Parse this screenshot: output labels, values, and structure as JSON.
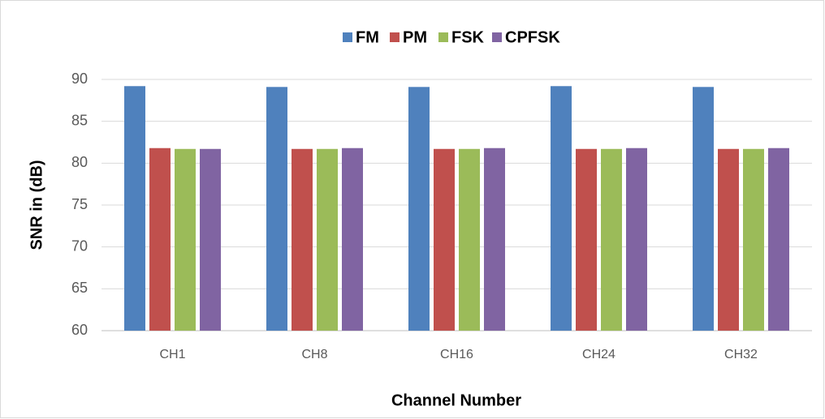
{
  "chart_data": {
    "type": "bar",
    "xlabel": "Channel Number",
    "ylabel": "SNR in (dB)",
    "categories": [
      "CH1",
      "CH8",
      "CH16",
      "CH24",
      "CH32"
    ],
    "series": [
      {
        "name": "FM",
        "color": "#4f81bd",
        "values": [
          89.2,
          89.1,
          89.1,
          89.2,
          89.1
        ]
      },
      {
        "name": "PM",
        "color": "#c0504d",
        "values": [
          81.8,
          81.7,
          81.7,
          81.7,
          81.7
        ]
      },
      {
        "name": "FSK",
        "color": "#9bbb59",
        "values": [
          81.7,
          81.7,
          81.7,
          81.7,
          81.7
        ]
      },
      {
        "name": "CPFSK",
        "color": "#8064a2",
        "values": [
          81.7,
          81.8,
          81.8,
          81.8,
          81.8
        ]
      }
    ],
    "ylim": [
      60,
      90
    ],
    "yticks": [
      60,
      65,
      70,
      75,
      80,
      85,
      90
    ],
    "grid": true,
    "legend": "top"
  }
}
